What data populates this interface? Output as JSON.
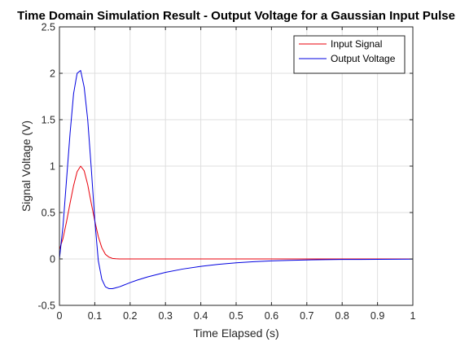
{
  "chart_data": {
    "type": "line",
    "title": "Time Domain Simulation Result - Output Voltage for a Gaussian Input Pulse",
    "xlabel": "Time Elapsed (s)",
    "ylabel": "Signal Voltage (V)",
    "xlim": [
      0,
      1
    ],
    "ylim": [
      -0.5,
      2.5
    ],
    "xticks": [
      "0",
      "0.1",
      "0.2",
      "0.3",
      "0.4",
      "0.5",
      "0.6",
      "0.7",
      "0.8",
      "0.9",
      "1"
    ],
    "yticks": [
      "-0.5",
      "0",
      "0.5",
      "1",
      "1.5",
      "2",
      "2.5"
    ],
    "grid": true,
    "legend_position": "top-right",
    "x": [
      0,
      0.01,
      0.02,
      0.03,
      0.04,
      0.05,
      0.06,
      0.07,
      0.08,
      0.09,
      0.1,
      0.11,
      0.12,
      0.13,
      0.14,
      0.15,
      0.16,
      0.17,
      0.18,
      0.19,
      0.2,
      0.22,
      0.25,
      0.3,
      0.35,
      0.4,
      0.45,
      0.5,
      0.55,
      0.6,
      0.65,
      0.7,
      0.75,
      0.8,
      0.85,
      0.9,
      0.95,
      1.0
    ],
    "series": [
      {
        "name": "Input Signal",
        "color": "#e8000b",
        "values": [
          0.1,
          0.22,
          0.4,
          0.6,
          0.79,
          0.94,
          1.0,
          0.95,
          0.8,
          0.6,
          0.41,
          0.24,
          0.12,
          0.05,
          0.02,
          0.006,
          0.002,
          0.0,
          0.0,
          0.0,
          0.0,
          0.0,
          0.0,
          0.0,
          0.0,
          0.0,
          0.0,
          0.0,
          0.0,
          0.0,
          0.0,
          0.0,
          0.0,
          0.0,
          0.0,
          0.0,
          0.0,
          0.0
        ]
      },
      {
        "name": "Output Voltage",
        "color": "#0000e0",
        "values": [
          0.0,
          0.35,
          0.85,
          1.35,
          1.78,
          2.0,
          2.03,
          1.85,
          1.5,
          0.98,
          0.42,
          -0.02,
          -0.22,
          -0.3,
          -0.32,
          -0.32,
          -0.31,
          -0.3,
          -0.285,
          -0.27,
          -0.255,
          -0.228,
          -0.193,
          -0.145,
          -0.108,
          -0.08,
          -0.058,
          -0.042,
          -0.03,
          -0.021,
          -0.015,
          -0.011,
          -0.008,
          -0.006,
          -0.005,
          -0.004,
          -0.003,
          -0.002
        ]
      }
    ]
  }
}
